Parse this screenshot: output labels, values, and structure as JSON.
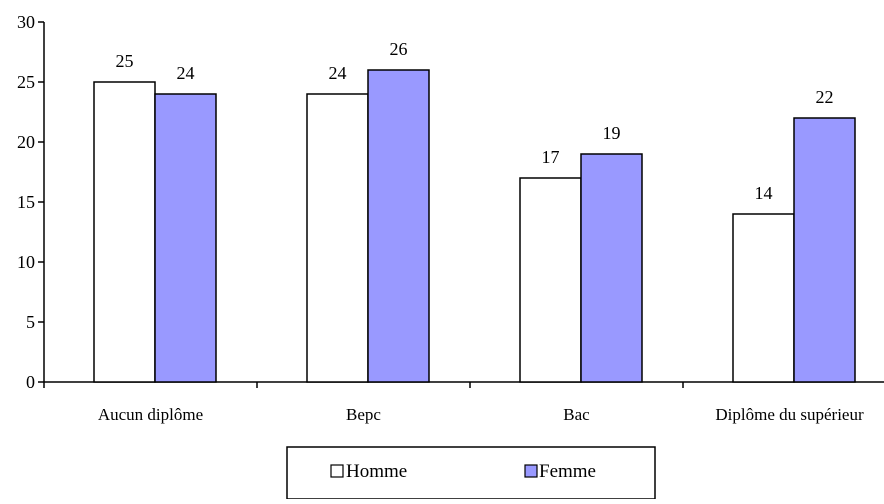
{
  "chart_data": {
    "type": "bar",
    "title": "",
    "xlabel": "",
    "ylabel": "",
    "categories": [
      "Aucun diplôme",
      "Bepc",
      "Bac",
      "Diplôme du supérieur"
    ],
    "series": [
      {
        "name": "Homme",
        "values": [
          25,
          24,
          17,
          14
        ],
        "color": "#ffffff"
      },
      {
        "name": "Femme",
        "values": [
          24,
          26,
          19,
          22
        ],
        "color": "#9999ff"
      }
    ],
    "ylim": [
      0,
      30
    ],
    "yticks": [
      "0",
      "5",
      "10",
      "15",
      "20",
      "25",
      "30"
    ],
    "grid": false,
    "legend": "bottom",
    "data_labels": true
  },
  "colors": {
    "axis": "#000000",
    "bar_stroke": "#000000"
  }
}
